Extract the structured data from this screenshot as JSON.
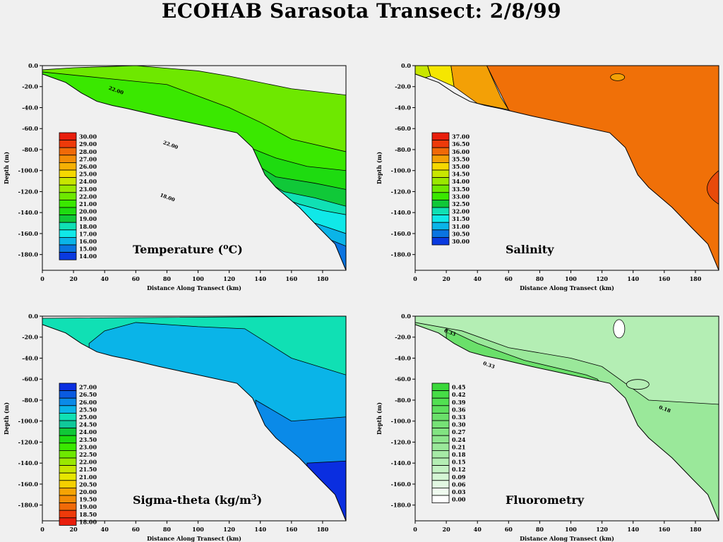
{
  "title": "ECOHAB Sarasota Transect: 2/8/99",
  "chart_data": [
    {
      "type": "contour",
      "title_prefix": "Temperature (",
      "title_sup": "o",
      "title_suffix": "C)",
      "xlabel": "Distance Along Transect (km)",
      "ylabel": "Depth (m)",
      "xlim": [
        0,
        195
      ],
      "ylim": [
        -195,
        0
      ],
      "xticks": [
        "0",
        "20",
        "40",
        "60",
        "80",
        "100",
        "120",
        "140",
        "160",
        "180"
      ],
      "yticks": [
        "0.0",
        "-20.0",
        "-40.0",
        "-60.0",
        "-80.0",
        "-100.0",
        "-120.0",
        "-140.0",
        "-160.0",
        "-180.0"
      ],
      "legend_levels": [
        "30.00",
        "29.00",
        "28.00",
        "27.00",
        "26.00",
        "25.00",
        "24.00",
        "23.00",
        "22.00",
        "21.00",
        "20.00",
        "19.00",
        "18.00",
        "17.00",
        "16.00",
        "15.00",
        "14.00"
      ],
      "legend_colors": [
        "#e81e0c",
        "#ee3a0a",
        "#f06a08",
        "#f38c06",
        "#f5b004",
        "#f5d800",
        "#c8e600",
        "#9ae800",
        "#6ee800",
        "#3ae800",
        "#1edb10",
        "#10c838",
        "#10e0b4",
        "#10e8e8",
        "#0ab4e8",
        "#0a74e0",
        "#0a3ae0"
      ],
      "contour_labels": [
        {
          "x": 47,
          "y": -25,
          "text": "22.00"
        },
        {
          "x": 82,
          "y": -77,
          "text": "22.00"
        },
        {
          "x": 80,
          "y": -127,
          "text": "18.00"
        }
      ],
      "bands": [
        {
          "color": "#6ee800",
          "upper": [
            [
              0,
              -4
            ],
            [
              20,
              -2
            ],
            [
              60,
              0
            ],
            [
              100,
              -5
            ],
            [
              120,
              -10
            ],
            [
              160,
              -22
            ],
            [
              195,
              -28
            ]
          ]
        },
        {
          "color": "#3ae800",
          "upper": [
            [
              0,
              -6
            ],
            [
              40,
              -12
            ],
            [
              80,
              -18
            ],
            [
              120,
              -40
            ],
            [
              140,
              -54
            ],
            [
              160,
              -70
            ],
            [
              195,
              -82
            ]
          ]
        },
        {
          "color": "#1edb10",
          "upper": [
            [
              133,
              -78
            ],
            [
              150,
              -88
            ],
            [
              170,
              -96
            ],
            [
              195,
              -100
            ]
          ]
        },
        {
          "color": "#10c838",
          "upper": [
            [
              137,
              -94
            ],
            [
              150,
              -106
            ],
            [
              175,
              -112
            ],
            [
              195,
              -118
            ]
          ]
        },
        {
          "color": "#10e0b4",
          "upper": [
            [
              141,
              -108
            ],
            [
              155,
              -120
            ],
            [
              175,
              -126
            ],
            [
              195,
              -134
            ]
          ]
        },
        {
          "color": "#10e8e8",
          "upper": [
            [
              150,
              -124
            ],
            [
              165,
              -132
            ],
            [
              180,
              -138
            ],
            [
              195,
              -142
            ]
          ]
        },
        {
          "color": "#0ab4e8",
          "upper": [
            [
              157,
              -140
            ],
            [
              175,
              -150
            ],
            [
              195,
              -160
            ]
          ]
        },
        {
          "color": "#0a74e0",
          "upper": [
            [
              168,
              -155
            ],
            [
              185,
              -166
            ],
            [
              195,
              -172
            ]
          ]
        }
      ]
    },
    {
      "type": "contour",
      "title_prefix": "Salinity",
      "title_sup": "",
      "title_suffix": "",
      "xlabel": "Distance Along Transect (km)",
      "ylabel": "Depth (m)",
      "xlim": [
        0,
        195
      ],
      "ylim": [
        -195,
        0
      ],
      "xticks": [
        "0",
        "20",
        "40",
        "60",
        "80",
        "100",
        "120",
        "140",
        "160",
        "180"
      ],
      "yticks": [
        "0.0",
        "-20.0",
        "-40.0",
        "-60.0",
        "-80.0",
        "-100.0",
        "-120.0",
        "-140.0",
        "-160.0",
        "-180.0"
      ],
      "legend_levels": [
        "37.00",
        "36.50",
        "36.00",
        "35.50",
        "35.00",
        "34.50",
        "34.00",
        "33.50",
        "33.00",
        "32.50",
        "32.00",
        "31.50",
        "31.00",
        "30.50",
        "30.00"
      ],
      "legend_colors": [
        "#e81e0c",
        "#ee3a0a",
        "#f06a08",
        "#f3a006",
        "#f5d800",
        "#c8e600",
        "#9ae800",
        "#6ee800",
        "#3ae800",
        "#10c838",
        "#10e0b4",
        "#10e8e8",
        "#0ab4e8",
        "#0a74e0",
        "#0a3ae0"
      ],
      "contour_labels": [],
      "bands": [
        {
          "color": "#c8e600",
          "upper": [
            [
              0,
              0
            ],
            [
              8,
              0
            ],
            [
              10,
              -10
            ],
            [
              0,
              -14
            ]
          ]
        },
        {
          "color": "#f5e600",
          "upper": [
            [
              8,
              0
            ],
            [
              23,
              0
            ],
            [
              25,
              -20
            ],
            [
              10,
              -10
            ]
          ]
        },
        {
          "color": "#f3a006",
          "upper": [
            [
              23,
              0
            ],
            [
              46,
              0
            ],
            [
              55,
              -30
            ],
            [
              60,
              -42
            ],
            [
              40,
              -36
            ],
            [
              25,
              -20
            ]
          ]
        },
        {
          "color": "#f07008",
          "upper": [
            [
              46,
              0
            ],
            [
              195,
              0
            ],
            [
              195,
              -195
            ],
            [
              60,
              -42
            ]
          ]
        }
      ]
    },
    {
      "type": "contour",
      "title_prefix": "Sigma-theta  (kg/m",
      "title_sup": "3",
      "title_suffix": ")",
      "xlabel": "Distance Along Transect (km)",
      "ylabel": "Depth (m)",
      "xlim": [
        0,
        195
      ],
      "ylim": [
        -195,
        0
      ],
      "xticks": [
        "0",
        "20",
        "40",
        "60",
        "80",
        "100",
        "120",
        "140",
        "160",
        "180"
      ],
      "yticks": [
        "0.0",
        "-20.0",
        "-40.0",
        "-60.0",
        "-80.0",
        "-100.0",
        "-120.0",
        "-140.0",
        "-160.0",
        "-180.0"
      ],
      "legend_levels": [
        "27.00",
        "26.50",
        "26.00",
        "25.50",
        "25.00",
        "24.50",
        "24.00",
        "23.50",
        "23.00",
        "22.50",
        "22.00",
        "21.50",
        "21.00",
        "20.50",
        "20.00",
        "19.50",
        "19.00",
        "18.50",
        "18.00"
      ],
      "legend_colors": [
        "#0a2ee0",
        "#0a5ae0",
        "#0a8ae8",
        "#0ab4e8",
        "#10e0b4",
        "#10c89a",
        "#10c838",
        "#1edb10",
        "#3ae800",
        "#6ee800",
        "#9ae800",
        "#c8e600",
        "#e6e600",
        "#f5d000",
        "#f5a404",
        "#f38c06",
        "#f06a08",
        "#ee3a0a",
        "#e81e0c"
      ],
      "contour_labels": [],
      "bands": [
        {
          "color": "#10e0b4",
          "upper": [
            [
              0,
              -2
            ],
            [
              195,
              0
            ]
          ]
        },
        {
          "color": "#0ab4e8",
          "upper": [
            [
              30,
              -26
            ],
            [
              40,
              -14
            ],
            [
              60,
              -6
            ],
            [
              100,
              -10
            ],
            [
              130,
              -12
            ],
            [
              160,
              -40
            ],
            [
              195,
              -56
            ]
          ]
        },
        {
          "color": "#0a8ae8",
          "upper": [
            [
              137,
              -80
            ],
            [
              160,
              -100
            ],
            [
              195,
              -96
            ]
          ]
        },
        {
          "color": "#0a2ee0",
          "upper": [
            [
              170,
              -140
            ],
            [
              195,
              -138
            ]
          ]
        }
      ]
    },
    {
      "type": "contour",
      "title_prefix": "Fluorometry",
      "title_sup": "",
      "title_suffix": "",
      "xlabel": "Distance Along Transect (km)",
      "ylabel": "Depth (m)",
      "xlim": [
        0,
        195
      ],
      "ylim": [
        -195,
        0
      ],
      "xticks": [
        "0",
        "20",
        "40",
        "60",
        "80",
        "100",
        "120",
        "140",
        "160",
        "180"
      ],
      "yticks": [
        "0.0",
        "-20.0",
        "-40.0",
        "-60.0",
        "-80.0",
        "-100.0",
        "-120.0",
        "-140.0",
        "-160.0",
        "-180.0"
      ],
      "legend_levels": [
        "0.45",
        "0.42",
        "0.39",
        "0.36",
        "0.33",
        "0.30",
        "0.27",
        "0.24",
        "0.21",
        "0.18",
        "0.15",
        "0.12",
        "0.09",
        "0.06",
        "0.03",
        "0.00"
      ],
      "legend_colors": [
        "#3ad83a",
        "#46dc46",
        "#52e052",
        "#5ee05e",
        "#6ae06a",
        "#76e276",
        "#82e482",
        "#8ee68e",
        "#9ae89a",
        "#a6eaa6",
        "#b4eeb4",
        "#c4f2c4",
        "#d4f6d4",
        "#e2f8e2",
        "#f0fcf0",
        "#ffffff"
      ],
      "contour_labels": [
        {
          "x": 22,
          "y": -17,
          "text": "0.33"
        },
        {
          "x": 47,
          "y": -48,
          "text": "0.33"
        },
        {
          "x": 160,
          "y": -90,
          "text": "0.18"
        }
      ],
      "bands": [
        {
          "color": "#b4eeb4",
          "upper": [
            [
              0,
              0
            ],
            [
              195,
              0
            ]
          ]
        },
        {
          "color": "#9ae89a",
          "upper": [
            [
              0,
              -6
            ],
            [
              30,
              -14
            ],
            [
              60,
              -30
            ],
            [
              100,
              -40
            ],
            [
              120,
              -48
            ],
            [
              150,
              -80
            ],
            [
              195,
              -84
            ]
          ]
        },
        {
          "color": "#6ae06a",
          "upper": [
            [
              20,
              -12
            ],
            [
              40,
              -26
            ],
            [
              70,
              -42
            ],
            [
              110,
              -56
            ],
            [
              117,
              -60
            ]
          ]
        }
      ]
    }
  ]
}
